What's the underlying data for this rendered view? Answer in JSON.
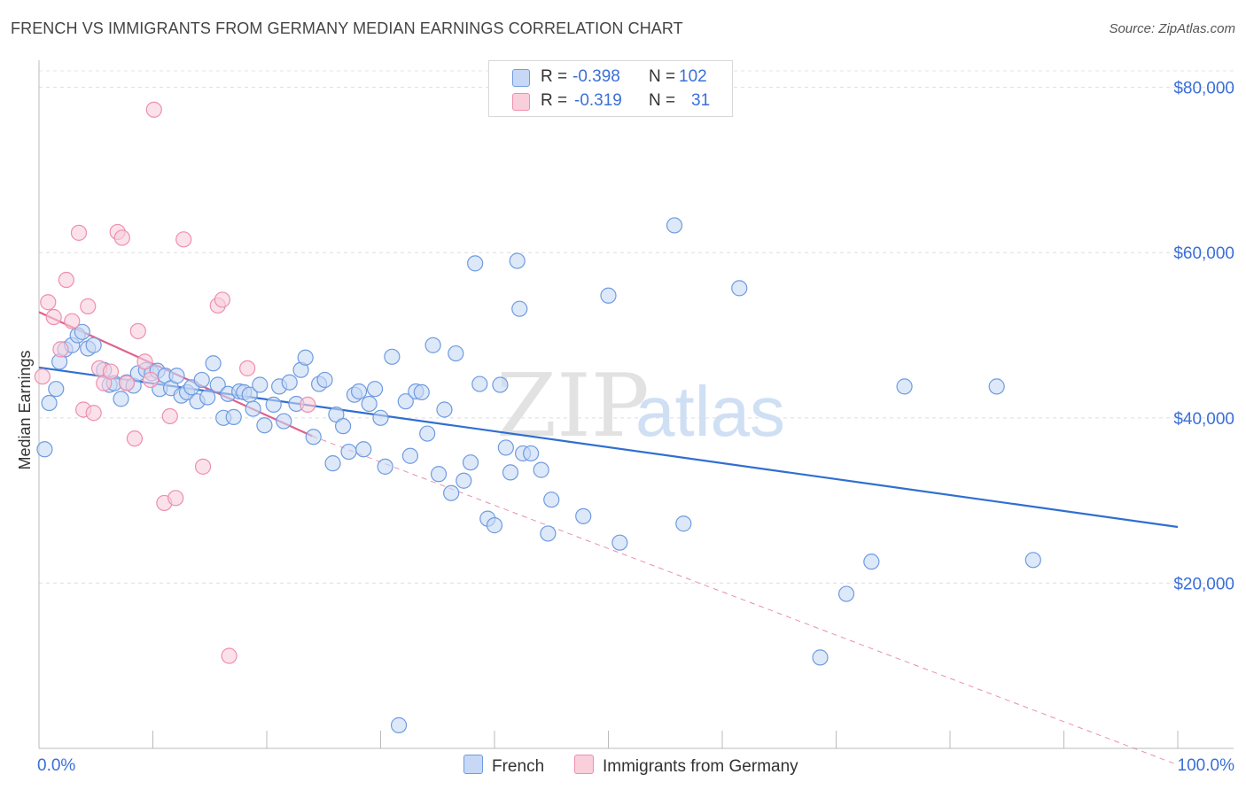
{
  "header": {
    "title": "FRENCH VS IMMIGRANTS FROM GERMANY MEDIAN EARNINGS CORRELATION CHART",
    "source": "Source: ZipAtlas.com"
  },
  "watermark": {
    "part1": "ZIP",
    "part2": "atlas"
  },
  "colors": {
    "french": "#6f9be0",
    "french_fill": "#c6d8f5",
    "french_line": "#2f6fd0",
    "germany": "#ee8fae",
    "germany_fill": "#f9cfdc",
    "germany_line": "#e0608d",
    "axis_text": "#3a6fd8"
  },
  "legend": {
    "r_label": "R =",
    "n_label": "N =",
    "rows": [
      {
        "name": "French",
        "r": "-0.398",
        "n": "102"
      },
      {
        "name": "Immigrants from Germany",
        "r": "-0.319",
        "n": "31"
      }
    ]
  },
  "chart_data": {
    "type": "scatter",
    "title": "FRENCH VS IMMIGRANTS FROM GERMANY MEDIAN EARNINGS CORRELATION CHART",
    "xlabel": "",
    "ylabel": "Median Earnings",
    "xlim": [
      0,
      100
    ],
    "ylim": [
      0,
      82000
    ],
    "x_tick_labels": [
      "0.0%",
      "100.0%"
    ],
    "y_ticks": [
      20000,
      40000,
      60000,
      80000
    ],
    "y_tick_labels": [
      "$20,000",
      "$40,000",
      "$60,000",
      "$80,000"
    ],
    "grid": true,
    "series": [
      {
        "name": "French",
        "r": -0.398,
        "n": 102,
        "trend": {
          "x": [
            0,
            100
          ],
          "y": [
            46100,
            26800
          ]
        },
        "points": [
          [
            0.5,
            36200
          ],
          [
            0.9,
            41800
          ],
          [
            1.5,
            43500
          ],
          [
            1.8,
            46800
          ],
          [
            2.3,
            48300
          ],
          [
            2.9,
            48800
          ],
          [
            3.4,
            50000
          ],
          [
            3.8,
            50400
          ],
          [
            4.3,
            48400
          ],
          [
            4.8,
            48800
          ],
          [
            5.7,
            45800
          ],
          [
            6.2,
            44000
          ],
          [
            6.6,
            44200
          ],
          [
            7.2,
            42300
          ],
          [
            7.7,
            44300
          ],
          [
            8.3,
            43900
          ],
          [
            8.7,
            45400
          ],
          [
            9.4,
            45800
          ],
          [
            9.9,
            45400
          ],
          [
            10.4,
            45700
          ],
          [
            10.6,
            43500
          ],
          [
            11.1,
            45100
          ],
          [
            11.6,
            43600
          ],
          [
            12.1,
            45100
          ],
          [
            12.5,
            42700
          ],
          [
            13.0,
            43100
          ],
          [
            13.4,
            43700
          ],
          [
            13.9,
            42000
          ],
          [
            14.3,
            44600
          ],
          [
            14.8,
            42500
          ],
          [
            15.3,
            46600
          ],
          [
            15.7,
            44000
          ],
          [
            16.2,
            40000
          ],
          [
            16.6,
            42900
          ],
          [
            17.1,
            40100
          ],
          [
            17.6,
            43200
          ],
          [
            18.0,
            43100
          ],
          [
            18.5,
            42800
          ],
          [
            18.8,
            41100
          ],
          [
            19.4,
            44000
          ],
          [
            19.8,
            39100
          ],
          [
            20.6,
            41600
          ],
          [
            21.1,
            43800
          ],
          [
            21.5,
            39600
          ],
          [
            22.0,
            44300
          ],
          [
            22.6,
            41700
          ],
          [
            23.0,
            45800
          ],
          [
            23.4,
            47300
          ],
          [
            24.1,
            37700
          ],
          [
            24.6,
            44100
          ],
          [
            25.1,
            44600
          ],
          [
            25.8,
            34500
          ],
          [
            26.1,
            40400
          ],
          [
            26.7,
            39000
          ],
          [
            27.2,
            35900
          ],
          [
            27.7,
            42800
          ],
          [
            28.1,
            43200
          ],
          [
            28.5,
            36200
          ],
          [
            29.0,
            41700
          ],
          [
            29.5,
            43500
          ],
          [
            30.0,
            40000
          ],
          [
            30.4,
            34100
          ],
          [
            31.0,
            47400
          ],
          [
            31.6,
            2800
          ],
          [
            32.2,
            42000
          ],
          [
            32.6,
            35400
          ],
          [
            33.1,
            43200
          ],
          [
            33.6,
            43100
          ],
          [
            34.1,
            38100
          ],
          [
            34.6,
            48800
          ],
          [
            35.1,
            33200
          ],
          [
            35.6,
            41000
          ],
          [
            36.2,
            30900
          ],
          [
            36.6,
            47800
          ],
          [
            37.3,
            32400
          ],
          [
            37.9,
            34600
          ],
          [
            38.3,
            58700
          ],
          [
            38.7,
            44100
          ],
          [
            39.4,
            27800
          ],
          [
            40.0,
            27000
          ],
          [
            40.5,
            44000
          ],
          [
            41.0,
            36400
          ],
          [
            41.4,
            33400
          ],
          [
            42.0,
            59000
          ],
          [
            42.2,
            53200
          ],
          [
            42.5,
            35700
          ],
          [
            43.2,
            35700
          ],
          [
            44.1,
            33700
          ],
          [
            44.7,
            26000
          ],
          [
            45.0,
            30100
          ],
          [
            47.8,
            28100
          ],
          [
            50.0,
            54800
          ],
          [
            51.0,
            24900
          ],
          [
            55.8,
            63300
          ],
          [
            56.6,
            27200
          ],
          [
            61.5,
            55700
          ],
          [
            68.6,
            11000
          ],
          [
            70.9,
            18700
          ],
          [
            73.1,
            22600
          ],
          [
            76.0,
            43800
          ],
          [
            84.1,
            43800
          ],
          [
            87.3,
            22800
          ]
        ]
      },
      {
        "name": "Immigrants from Germany",
        "r": -0.319,
        "n": 31,
        "trend": {
          "x": [
            0,
            24
          ],
          "y": [
            52800,
            37800
          ]
        },
        "trend_extended": {
          "x": [
            24,
            100
          ],
          "y": [
            37800,
            -2000
          ]
        },
        "points": [
          [
            0.3,
            45000
          ],
          [
            0.8,
            54000
          ],
          [
            1.3,
            52200
          ],
          [
            1.9,
            48300
          ],
          [
            2.4,
            56700
          ],
          [
            2.9,
            51700
          ],
          [
            3.5,
            62400
          ],
          [
            3.9,
            41000
          ],
          [
            4.3,
            53500
          ],
          [
            4.8,
            40600
          ],
          [
            5.3,
            46000
          ],
          [
            5.7,
            44200
          ],
          [
            6.3,
            45600
          ],
          [
            6.9,
            62500
          ],
          [
            7.3,
            61800
          ],
          [
            7.7,
            44200
          ],
          [
            8.4,
            37500
          ],
          [
            8.7,
            50500
          ],
          [
            9.3,
            46800
          ],
          [
            9.8,
            44600
          ],
          [
            10.1,
            77300
          ],
          [
            11.0,
            29700
          ],
          [
            11.5,
            40200
          ],
          [
            12.0,
            30300
          ],
          [
            12.7,
            61600
          ],
          [
            14.4,
            34100
          ],
          [
            15.7,
            53600
          ],
          [
            16.1,
            54300
          ],
          [
            16.7,
            11200
          ],
          [
            18.3,
            46000
          ],
          [
            23.6,
            41600
          ]
        ]
      }
    ]
  }
}
